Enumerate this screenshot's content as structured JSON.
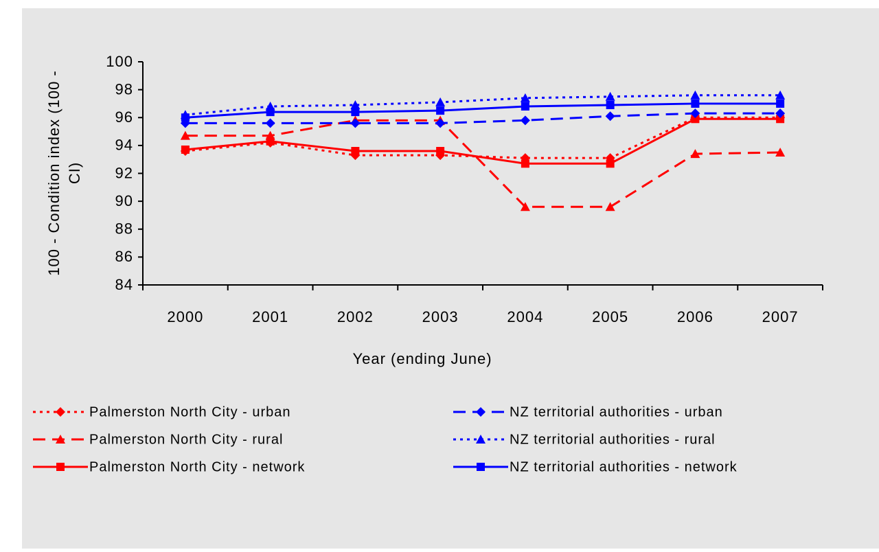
{
  "chart_data": {
    "type": "line",
    "xlabel": "Year (ending June)",
    "ylabel": [
      "100 - Condition index (100 -",
      "CI)"
    ],
    "categories": [
      "2000",
      "2001",
      "2002",
      "2003",
      "2004",
      "2005",
      "2006",
      "2007"
    ],
    "ylim": [
      84,
      100
    ],
    "yticks": [
      84,
      86,
      88,
      90,
      92,
      94,
      96,
      98,
      100
    ],
    "series": [
      {
        "name": "Palmerston North City - urban",
        "color": "#ff0000",
        "dash": "dotted",
        "marker": "diamond",
        "values": [
          93.6,
          94.2,
          93.3,
          93.3,
          93.1,
          93.1,
          96.0,
          96.0
        ]
      },
      {
        "name": "Palmerston North City - rural",
        "color": "#ff0000",
        "dash": "dashed",
        "marker": "triangle",
        "values": [
          94.7,
          94.7,
          95.8,
          95.8,
          89.6,
          89.6,
          93.4,
          93.5
        ]
      },
      {
        "name": "Palmerston North City - network",
        "color": "#ff0000",
        "dash": "solid",
        "marker": "square",
        "values": [
          93.7,
          94.3,
          93.6,
          93.6,
          92.7,
          92.7,
          95.9,
          95.9
        ]
      },
      {
        "name": "NZ territorial authorities - urban",
        "color": "#0000ff",
        "dash": "dashed",
        "marker": "diamond",
        "values": [
          95.6,
          95.6,
          95.6,
          95.6,
          95.8,
          96.1,
          96.3,
          96.3
        ]
      },
      {
        "name": "NZ territorial authorities - rural",
        "color": "#0000ff",
        "dash": "dotted",
        "marker": "triangle",
        "values": [
          96.2,
          96.8,
          96.9,
          97.1,
          97.4,
          97.5,
          97.6,
          97.6
        ]
      },
      {
        "name": "NZ territorial authorities - network",
        "color": "#0000ff",
        "dash": "solid",
        "marker": "square",
        "values": [
          96.0,
          96.4,
          96.4,
          96.5,
          96.8,
          96.9,
          97.0,
          97.0
        ]
      }
    ],
    "legend": "bottom"
  }
}
